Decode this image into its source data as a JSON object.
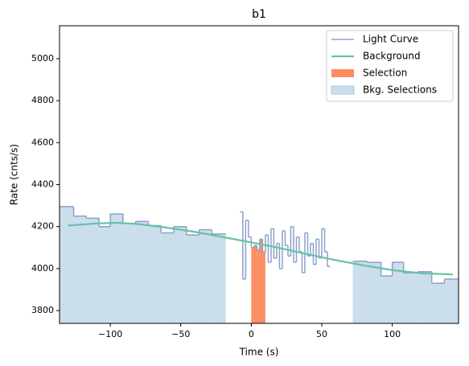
{
  "chart_data": {
    "type": "lightcurve",
    "title": "b1",
    "x_label": "Time (s)",
    "y_label": "Rate (cnts/s)",
    "xlim": [
      -136,
      147
    ],
    "ylim": [
      3739,
      5157
    ],
    "xticks": [
      {
        "value": -100,
        "label": "−100"
      },
      {
        "value": -50,
        "label": "−50"
      },
      0,
      50,
      100
    ],
    "yticks": [
      3800,
      4000,
      4200,
      4400,
      4600,
      4800,
      5000
    ],
    "legend": "upper right",
    "light_curve": {
      "name": "Light Curve",
      "color": "#8da0cb",
      "bins": [
        -136,
        -126,
        -117,
        -108,
        -100,
        -91,
        -82,
        -73,
        -64,
        -55,
        -46,
        -37,
        -28,
        -18,
        -8,
        -6,
        -4,
        -2,
        0,
        2,
        4,
        6,
        8,
        10,
        12,
        14,
        16,
        18,
        20,
        22,
        24,
        26,
        28,
        30,
        32,
        34,
        36,
        38,
        40,
        42,
        44,
        46,
        48,
        50,
        52,
        54,
        56,
        72,
        82,
        92,
        100,
        108,
        118,
        128,
        137,
        147
      ],
      "values": [
        4295,
        4250,
        4240,
        4200,
        4260,
        4215,
        4225,
        4205,
        4170,
        4200,
        4160,
        4185,
        4165,
        null,
        4270,
        3950,
        4230,
        4150,
        4100,
        4110,
        4090,
        4140,
        4080,
        4160,
        4030,
        4190,
        4050,
        4120,
        4000,
        4180,
        4110,
        4060,
        4200,
        4030,
        4150,
        4080,
        3980,
        4170,
        4060,
        4120,
        4020,
        4140,
        4050,
        4190,
        4080,
        4010,
        null,
        4035,
        4030,
        3965,
        4030,
        3980,
        3985,
        3930,
        3950
      ]
    },
    "background": {
      "name": "Background",
      "color": "#66c2a5",
      "x": [
        -130,
        -110,
        -95,
        -80,
        -60,
        -40,
        -20,
        0,
        20,
        40,
        60,
        80,
        100,
        120,
        143
      ],
      "values": [
        4205,
        4215,
        4218,
        4212,
        4195,
        4175,
        4150,
        4125,
        4098,
        4068,
        4040,
        4015,
        3993,
        3978,
        3972
      ]
    },
    "selection": {
      "name": "Selection",
      "color": "#fc8d62",
      "range": [
        0,
        10
      ]
    },
    "bkg_selections": {
      "name": "Bkg. Selections",
      "color": "#cadeec",
      "edge": "#a9c9dd",
      "ranges": [
        [
          -136,
          -18
        ],
        [
          72,
          147
        ]
      ]
    }
  }
}
